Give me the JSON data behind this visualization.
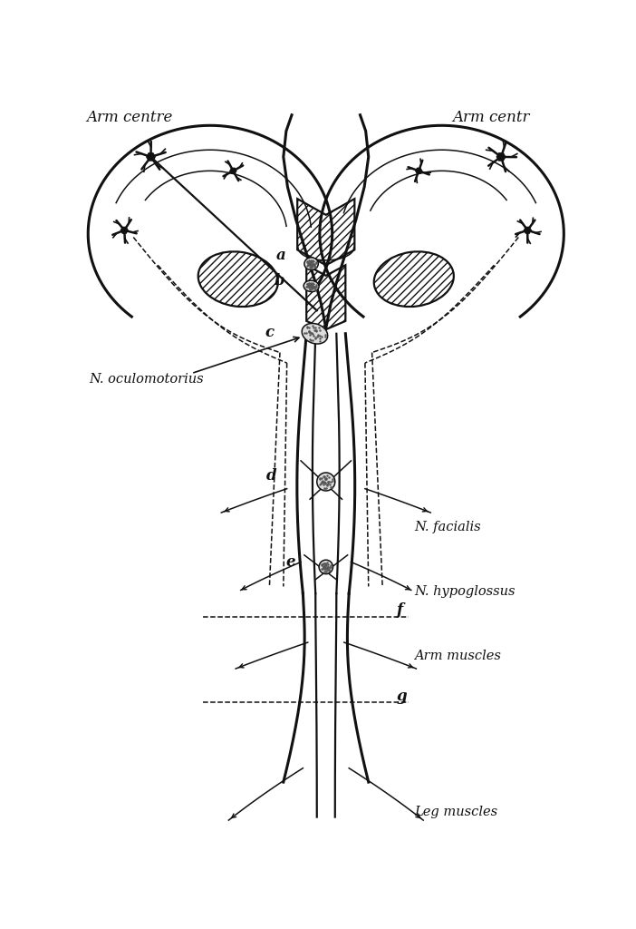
{
  "bg_color": "#ffffff",
  "ink_color": "#111111",
  "labels": {
    "arm_centre_left": "Arm centre",
    "arm_centre_right": "Arm centr",
    "n_oculomotorius": "N. oculomotorius",
    "n_facialis": "N. facialis",
    "n_hypoglossus": "N. hypoglossus",
    "arm_muscles": "Arm muscles",
    "leg_muscles": "Leg muscles",
    "a": "a",
    "b": "b",
    "c": "c",
    "d": "d",
    "e": "e",
    "f": "f",
    "g": "g"
  }
}
